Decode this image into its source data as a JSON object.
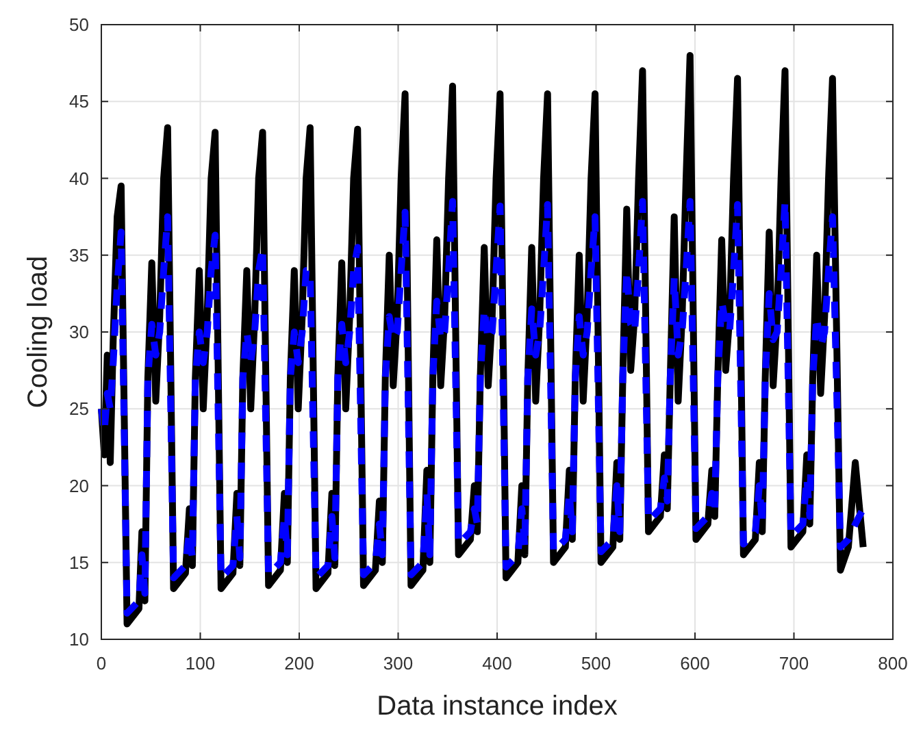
{
  "chart_data": {
    "type": "line",
    "xlabel": "Data instance index",
    "ylabel": "Cooling load",
    "xlim": [
      0,
      800
    ],
    "xticks": [
      0,
      100,
      200,
      300,
      400,
      500,
      600,
      700,
      800
    ],
    "ylim": [
      10,
      50
    ],
    "yticks": [
      10,
      15,
      20,
      25,
      30,
      35,
      40,
      45,
      50
    ],
    "grid": true,
    "x": [
      0,
      3,
      6,
      9,
      12,
      16,
      20,
      26,
      38,
      41,
      44,
      47,
      51,
      55,
      59,
      63,
      67,
      73,
      85,
      89,
      92,
      95,
      99,
      103,
      107,
      111,
      115,
      121,
      133,
      137,
      140,
      143,
      147,
      151,
      155,
      159,
      163,
      169,
      181,
      185,
      188,
      191,
      195,
      199,
      203,
      207,
      211,
      217,
      229,
      233,
      236,
      239,
      243,
      247,
      251,
      255,
      259,
      265,
      277,
      281,
      284,
      287,
      291,
      295,
      299,
      303,
      307,
      313,
      325,
      329,
      332,
      335,
      339,
      343,
      347,
      351,
      355,
      361,
      373,
      377,
      380,
      383,
      387,
      391,
      395,
      399,
      403,
      409,
      421,
      425,
      428,
      431,
      435,
      439,
      443,
      447,
      451,
      457,
      469,
      473,
      476,
      479,
      483,
      487,
      491,
      495,
      499,
      505,
      517,
      521,
      524,
      527,
      531,
      535,
      539,
      543,
      547,
      553,
      565,
      569,
      572,
      575,
      579,
      583,
      587,
      591,
      595,
      601,
      613,
      617,
      620,
      623,
      627,
      631,
      635,
      639,
      643,
      649,
      661,
      665,
      668,
      671,
      675,
      679,
      683,
      687,
      691,
      697,
      709,
      713,
      716,
      719,
      723,
      727,
      731,
      735,
      739,
      747,
      755,
      762,
      770
    ],
    "series": [
      {
        "color": "#000000",
        "line_style": "solid",
        "values": [
          25,
          22,
          28.5,
          21.5,
          29.5,
          37.5,
          39.5,
          11,
          12,
          17,
          12.5,
          27,
          34.5,
          25.5,
          31,
          40,
          43.3,
          13.3,
          14.3,
          18.5,
          14.8,
          27,
          34,
          25,
          31,
          40,
          43,
          13.3,
          14.3,
          19.5,
          14.8,
          27,
          34,
          25,
          31,
          40,
          43,
          13.5,
          14.5,
          19.5,
          15,
          27,
          34,
          25,
          31,
          40,
          43.3,
          13.3,
          14.3,
          19.5,
          14.8,
          27,
          34.5,
          25,
          31,
          40,
          43.2,
          13.5,
          14.5,
          19,
          15,
          27,
          35,
          26.5,
          31,
          40,
          45.5,
          13.5,
          14.5,
          21,
          15,
          27,
          36,
          26.5,
          31,
          40,
          46,
          15.5,
          16.5,
          20,
          17,
          27,
          35.5,
          26.5,
          31,
          40,
          45.5,
          14,
          15,
          20,
          15.5,
          27,
          35.5,
          25.5,
          31,
          40,
          45.5,
          15,
          16,
          21,
          16.5,
          27,
          35,
          25.5,
          31,
          40,
          45.5,
          15,
          16,
          21.5,
          16.5,
          27,
          38,
          27.5,
          31,
          40,
          47,
          17,
          18,
          22,
          18.5,
          27,
          37.5,
          25.5,
          31,
          40,
          48,
          16.5,
          17.5,
          21,
          18,
          27,
          36,
          27.5,
          31,
          40,
          46.5,
          15.5,
          16.5,
          21.5,
          17,
          27,
          36.5,
          26.5,
          31,
          40,
          47,
          16,
          17,
          22,
          17.5,
          27,
          35,
          26,
          31,
          40,
          46.5,
          14.5,
          16,
          21.5,
          16
        ]
      },
      {
        "color": "#0000ff",
        "line_style": "dashed",
        "values": [
          25,
          23.5,
          26,
          25,
          28,
          33,
          36.5,
          11.7,
          12.5,
          15.5,
          13,
          27,
          30.5,
          28.5,
          30,
          34,
          37.5,
          14,
          14.8,
          17,
          15.3,
          27,
          30,
          28,
          30,
          34,
          36.3,
          14,
          14.8,
          18,
          15.3,
          27,
          30,
          28,
          30,
          34,
          35.5,
          14.2,
          15,
          18,
          15.5,
          27,
          30,
          28,
          30,
          34,
          34,
          14,
          14.8,
          18,
          15.3,
          27,
          30.5,
          28,
          30,
          34,
          35.5,
          14.2,
          15,
          17.5,
          15.5,
          27,
          31,
          29.5,
          30,
          34,
          37.8,
          14.2,
          15,
          19.5,
          15.5,
          27,
          32,
          29.5,
          30,
          34,
          38.5,
          16.2,
          17,
          18.5,
          17.5,
          27,
          31.5,
          29.5,
          30,
          34,
          38.2,
          14.7,
          15.5,
          18.5,
          16,
          27,
          31.5,
          28.5,
          30,
          34,
          38.3,
          15.7,
          16.5,
          19.5,
          17,
          27,
          31,
          28.5,
          30,
          34,
          37.5,
          15.7,
          16.5,
          20,
          17,
          27,
          34,
          30.5,
          30,
          34,
          38.5,
          17.7,
          18.5,
          20.5,
          19,
          27,
          33.5,
          28.5,
          30,
          34,
          38.5,
          17.2,
          18,
          19.5,
          18.5,
          27,
          32,
          30.5,
          30,
          34,
          38.3,
          16.2,
          17,
          20,
          17.5,
          27,
          32.5,
          29.5,
          30,
          34,
          38.5,
          16.7,
          17.5,
          20.5,
          18,
          27,
          31,
          29,
          30,
          34,
          37.5,
          16,
          16.5,
          17.5,
          18.5
        ]
      }
    ]
  }
}
